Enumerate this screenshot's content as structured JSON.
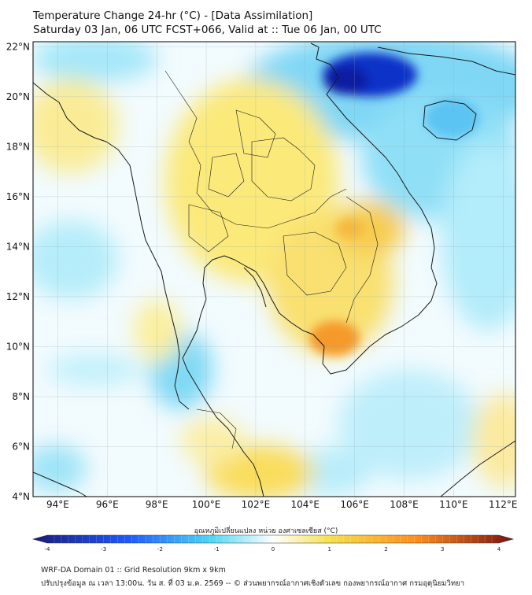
{
  "title": {
    "line1": "Temperature Change 24-hr (°C) - [Data Assimilation]",
    "line2": "Saturday 03 Jan, 06 UTC FCST+066, Valid at :: Tue 06 Jan, 00 UTC"
  },
  "map": {
    "lat_labels": [
      "22°N",
      "20°N",
      "18°N",
      "16°N",
      "14°N",
      "12°N",
      "10°N",
      "8°N",
      "6°N",
      "4°N"
    ],
    "lat_values": [
      22,
      20,
      18,
      16,
      14,
      12,
      10,
      8,
      6,
      4
    ],
    "lon_labels": [
      "94°E",
      "96°E",
      "98°E",
      "100°E",
      "102°E",
      "104°E",
      "106°E",
      "108°E",
      "110°E",
      "112°E"
    ],
    "lon_values": [
      94,
      96,
      98,
      100,
      102,
      104,
      106,
      108,
      110,
      112
    ],
    "lon_range": [
      93,
      112.5
    ],
    "lat_range": [
      4,
      22.2
    ],
    "units": "°C"
  },
  "colorbar": {
    "label": "อุณหภูมิเปลี่ยนแปลง หน่วย องศาเซลเซียส (°C)",
    "ticks": [
      "-4",
      "-3",
      "-2",
      "-1",
      "0",
      "1",
      "2",
      "3",
      "4"
    ],
    "tick_values": [
      -4,
      -3,
      -2,
      -1,
      0,
      1,
      2,
      3,
      4
    ],
    "range": [
      -4,
      4
    ],
    "colors": {
      "min": "#1a1a7a",
      "cold": "#1e5aff",
      "cool": "#4ad8f5",
      "near_zero": "#ffffff",
      "warm": "#f5e04a",
      "hot": "#ff8c1a",
      "max": "#7a1010"
    }
  },
  "footer": {
    "line1": "WRF-DA Domain 01 :: Grid Resolution 9km x 9km",
    "line2": "ปรับปรุงข้อมูล ณ เวลา 13:00น. วัน ส. ที่ 03 ม.ค. 2569 -- © ส่วนพยากรณ์อากาศเชิงตัวเลข กองพยากรณ์อากาศ กรมอุตุนิยมวิทยา"
  }
}
